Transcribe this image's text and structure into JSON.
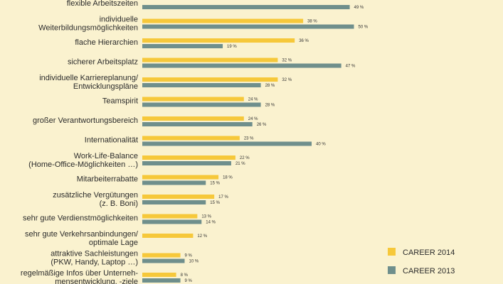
{
  "colors": {
    "background": "#faf2cf",
    "series_2014": "#f6c83a",
    "series_2013": "#6f8f8c"
  },
  "chart_data": {
    "type": "bar",
    "orientation": "horizontal",
    "grid": false,
    "legend_position": "bottom-right",
    "value_unit": "%",
    "categories": [
      "flexible Arbeitszeiten",
      "individuelle\nWeiterbildungsmöglichkeiten",
      "flache Hierarchien",
      "sicherer Arbeitsplatz",
      "individuelle Karriereplanung/\nEntwicklungspläne",
      "Teamspirit",
      "großer Verantwortungsbereich",
      "Internationalität",
      "Work-Life-Balance\n(Home-Office-Möglichkeiten …)",
      "Mitarbeiterrabatte",
      "zusätzliche Vergütungen\n(z. B. Boni)",
      "sehr gute Verdienstmöglichkeiten",
      "sehr gute Verkehrsanbindungen/\noptimale Lage",
      "attraktive Sachleistungen\n(PKW, Handy, Laptop …)",
      "regelmäßige Infos über Unterneh-\nmensentwicklung, -ziele"
    ],
    "series": [
      {
        "name": "CAREER 2014",
        "values": [
          null,
          38,
          36,
          32,
          32,
          24,
          24,
          23,
          22,
          18,
          17,
          13,
          12,
          9,
          8
        ]
      },
      {
        "name": "CAREER 2013",
        "values": [
          49,
          50,
          19,
          47,
          28,
          28,
          26,
          40,
          21,
          15,
          15,
          14,
          null,
          10,
          9
        ]
      }
    ]
  }
}
